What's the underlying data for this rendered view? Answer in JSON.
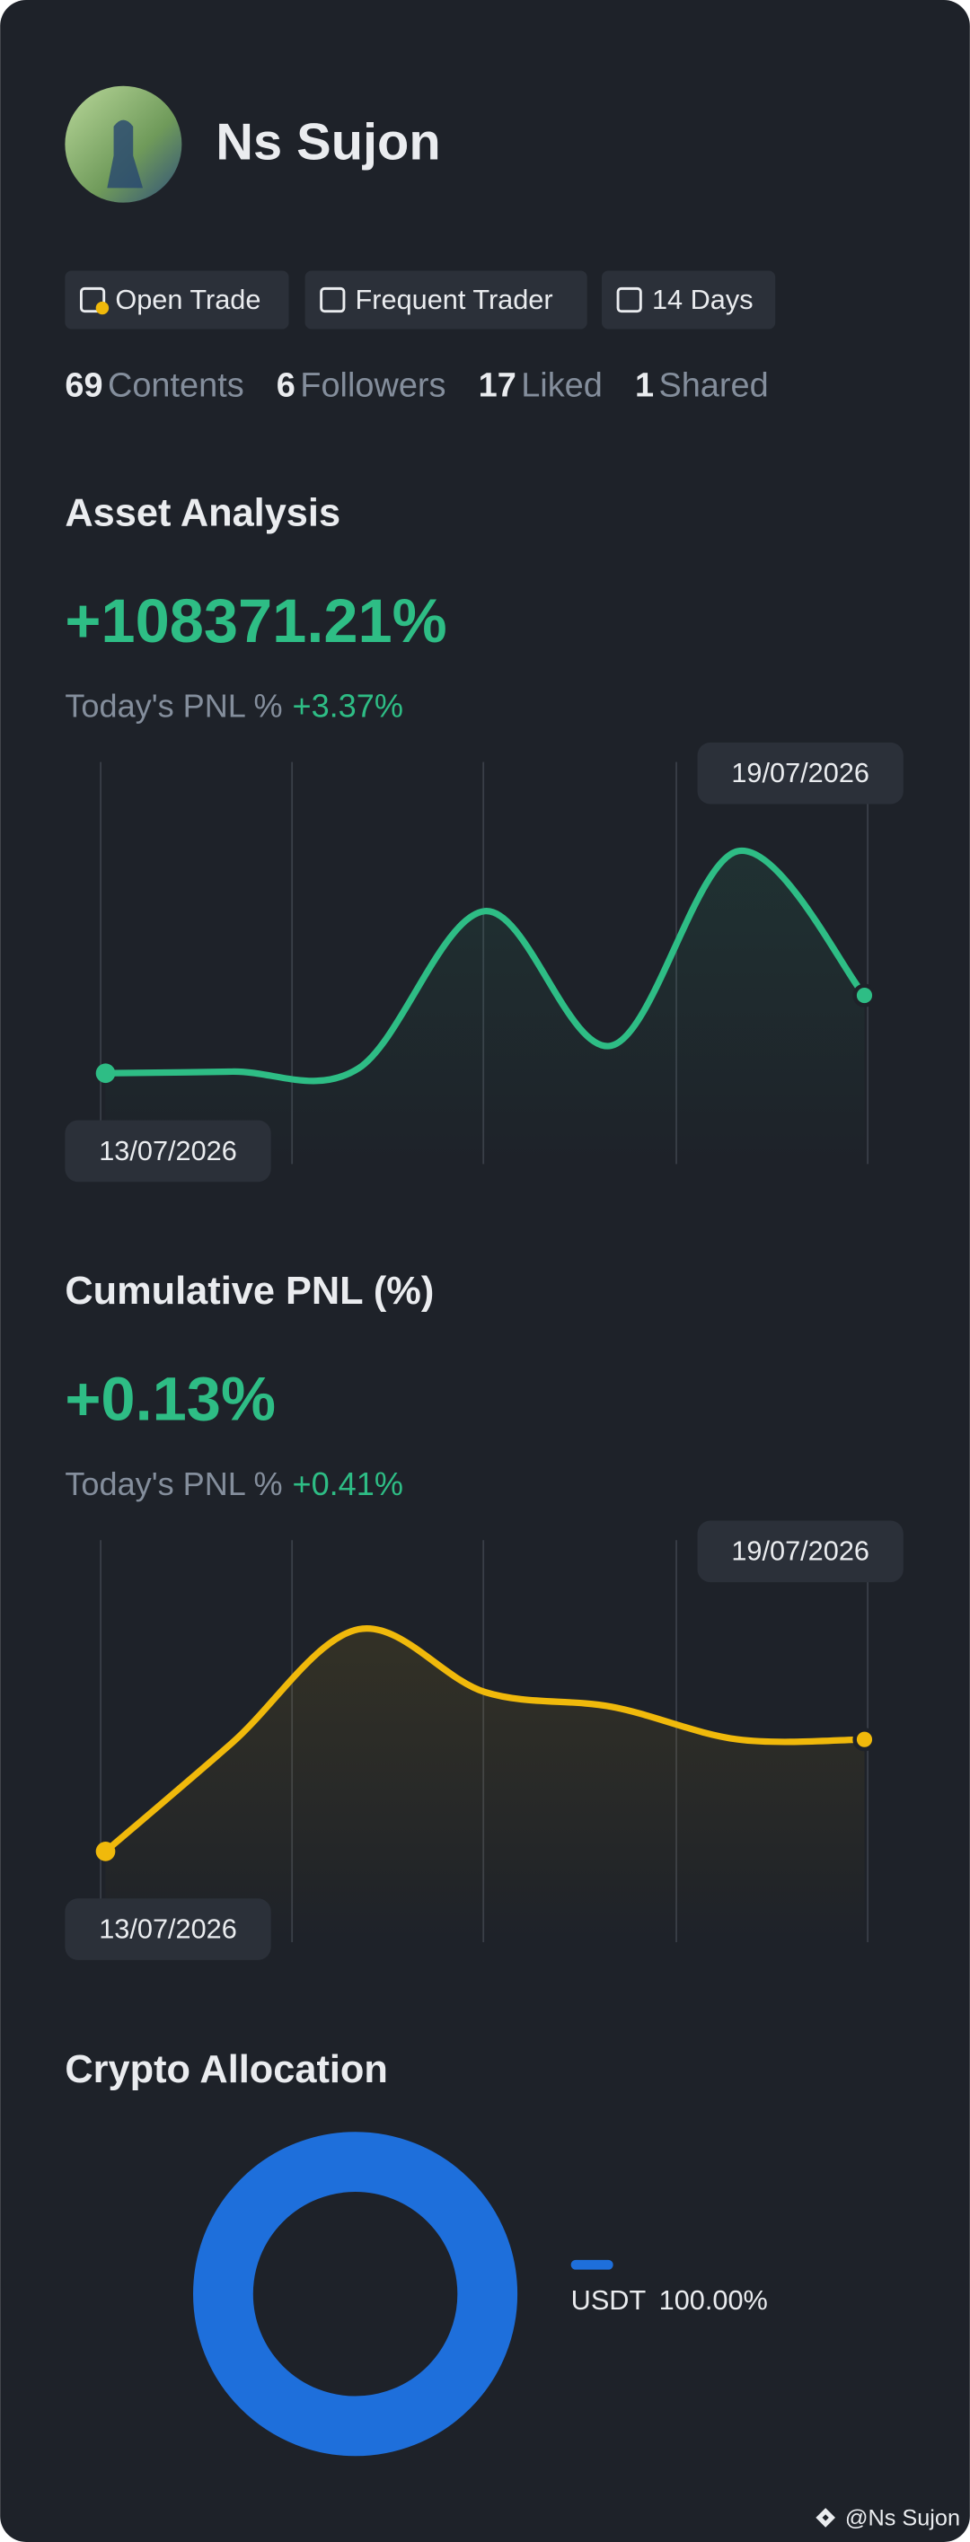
{
  "profile": {
    "name": "Ns Sujon",
    "badges": [
      "Open Trade",
      "Frequent Trader",
      "14 Days"
    ],
    "stats": [
      {
        "value": 69,
        "label": "Contents"
      },
      {
        "value": 6,
        "label": "Followers"
      },
      {
        "value": 17,
        "label": "Liked"
      },
      {
        "value": 1,
        "label": "Shared"
      }
    ]
  },
  "asset_analysis": {
    "title": "Asset Analysis",
    "value": "+108371.21%",
    "today_label": "Today's PNL %",
    "today_value": "+3.37%",
    "chart": {
      "type": "line",
      "color": "#2ebd85",
      "x": [
        "13/07/2026",
        null,
        null,
        null,
        null,
        null,
        "19/07/2026"
      ],
      "values": [
        0,
        0.01,
        0.03,
        1.0,
        0.17,
        1.37,
        0.48
      ]
    }
  },
  "cumulative_pnl": {
    "title": "Cumulative PNL (%)",
    "value": "+0.13%",
    "today_label": "Today's PNL %",
    "today_value": "+0.41%",
    "chart": {
      "type": "line",
      "color": "#f0b90b",
      "x": [
        "13/07/2026",
        null,
        null,
        null,
        null,
        null,
        "19/07/2026"
      ],
      "values": [
        0,
        0.126,
        0.258,
        0.185,
        0.168,
        0.13,
        0.13
      ]
    }
  },
  "allocation": {
    "title": "Crypto Allocation",
    "chart": {
      "type": "donut",
      "items": [
        {
          "name": "USDT",
          "value": 100,
          "value_label": "100.00%",
          "color": "#1e6fdb"
        }
      ]
    }
  },
  "footer": {
    "text": "@Ns Sujon"
  }
}
